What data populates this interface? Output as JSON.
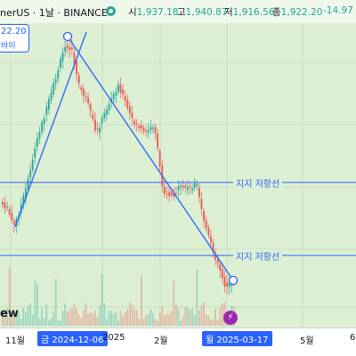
{
  "header": {
    "symbol": "nerUS · 1날 · BINANCE",
    "open_label": "시",
    "open_value": "1,937.18",
    "high_label": "고",
    "high_value": "1,940.87",
    "low_label": "저",
    "low_value": "1,916.56",
    "close_label": "종",
    "close_value": "1,922.20",
    "change": "-14.97 (-0",
    "status_color": "#26a69a"
  },
  "price_box": {
    "value": "22.20",
    "label": "바이"
  },
  "support_lines": [
    {
      "label": "지지 저항선"
    },
    {
      "label": "지지 저항선"
    }
  ],
  "logo_text": "ew",
  "time_axis": {
    "ticks": [
      "11월",
      "2025",
      "2월",
      "5월",
      "6"
    ],
    "start_marker": "금 2024-12-06",
    "end_marker": "월 2025-03-17"
  },
  "colors": {
    "up": "#26a69a",
    "down": "#ef5350",
    "drawing": "#2962ff",
    "background": "#dcefd3"
  },
  "chart_data": {
    "type": "candlestick",
    "volume": "shown",
    "annotations": [
      "trend line",
      "trend line",
      "horizontal support/resistance",
      "horizontal support/resistance"
    ]
  }
}
